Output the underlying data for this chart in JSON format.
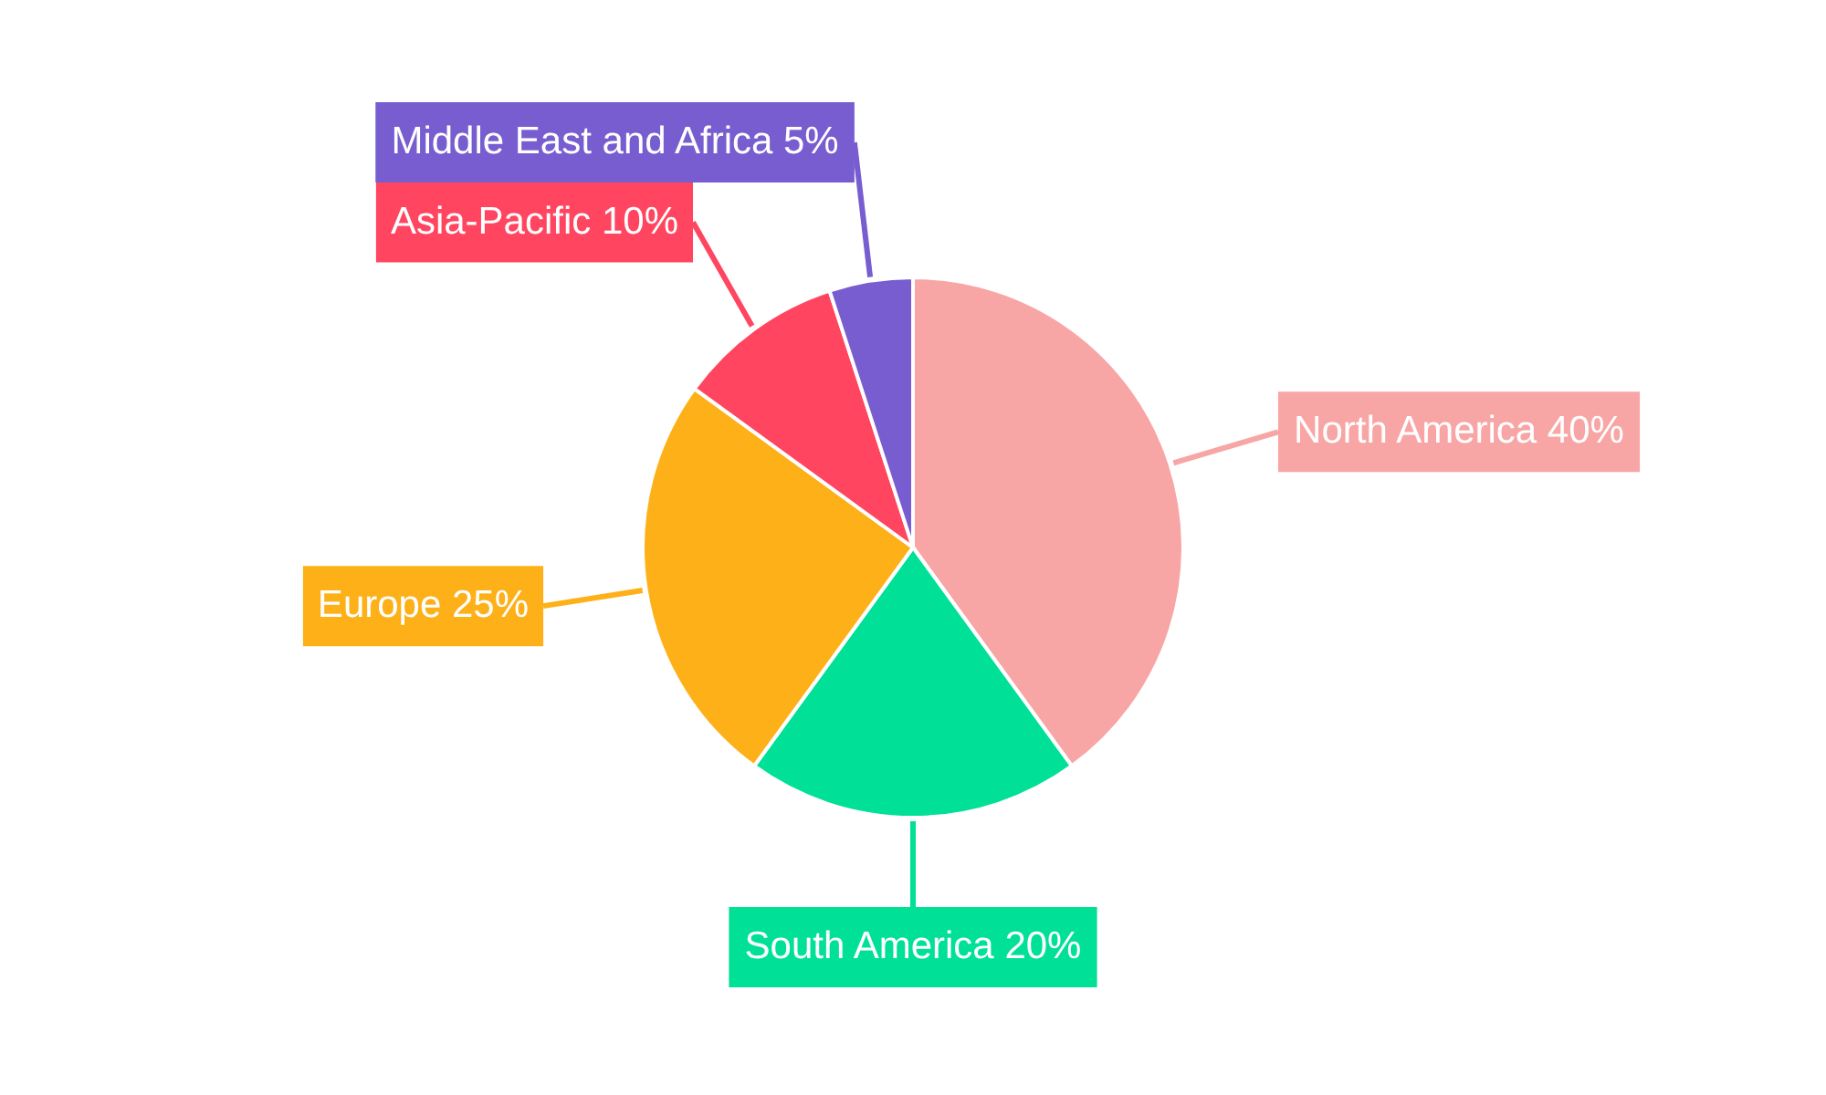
{
  "chart_data": {
    "type": "pie",
    "categories": [
      "North America",
      "South America",
      "Europe",
      "Asia-Pacific",
      "Middle East and Africa"
    ],
    "values": [
      40,
      20,
      25,
      10,
      5
    ],
    "colors": [
      "#f8a5a5",
      "#00e096",
      "#feb019",
      "#ff4560",
      "#775dd0"
    ],
    "value_labels": [
      "40%",
      "20%",
      "25%",
      "10%",
      "5%"
    ]
  }
}
